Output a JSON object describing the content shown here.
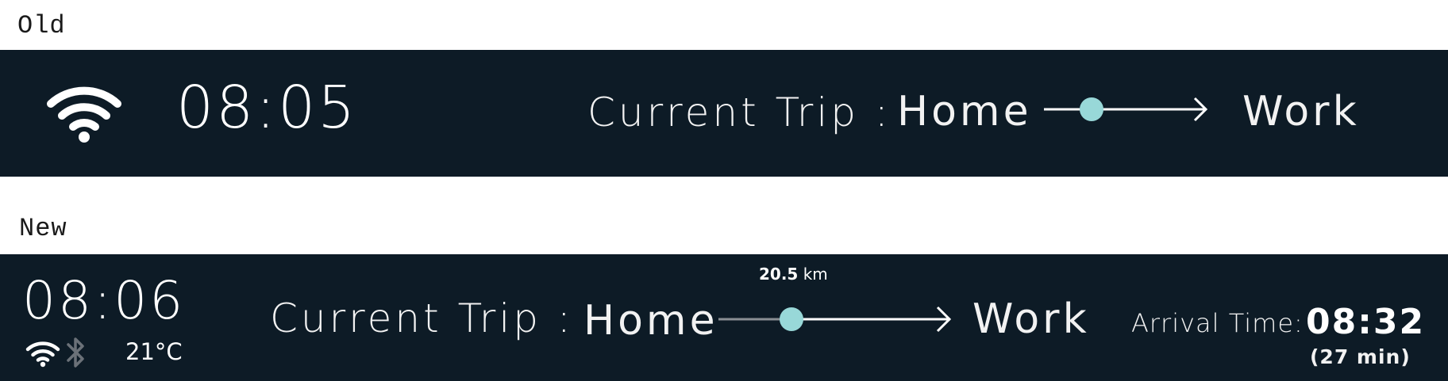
{
  "captions": {
    "old": "Old",
    "new": "New"
  },
  "old": {
    "time": "08:05",
    "trip_label": "Current Trip :",
    "origin": "Home",
    "destination": "Work",
    "icons": {
      "wifi": "wifi-icon"
    }
  },
  "new": {
    "time": "08:06",
    "temperature": "21°C",
    "trip_label": "Current Trip :",
    "origin": "Home",
    "destination": "Work",
    "distance_value": "20.5",
    "distance_unit": "km",
    "arrival_label": "Arrival Time:",
    "arrival_time": "08:32",
    "duration": "(27 min)",
    "icons": {
      "wifi": "wifi-icon",
      "bluetooth": "bluetooth-icon"
    }
  },
  "colors": {
    "bar_background": "#0d1b26",
    "accent": "#98d8d8",
    "text": "#ffffff",
    "route_past": "#8a8f94",
    "bluetooth_inactive": "#6b7178"
  }
}
